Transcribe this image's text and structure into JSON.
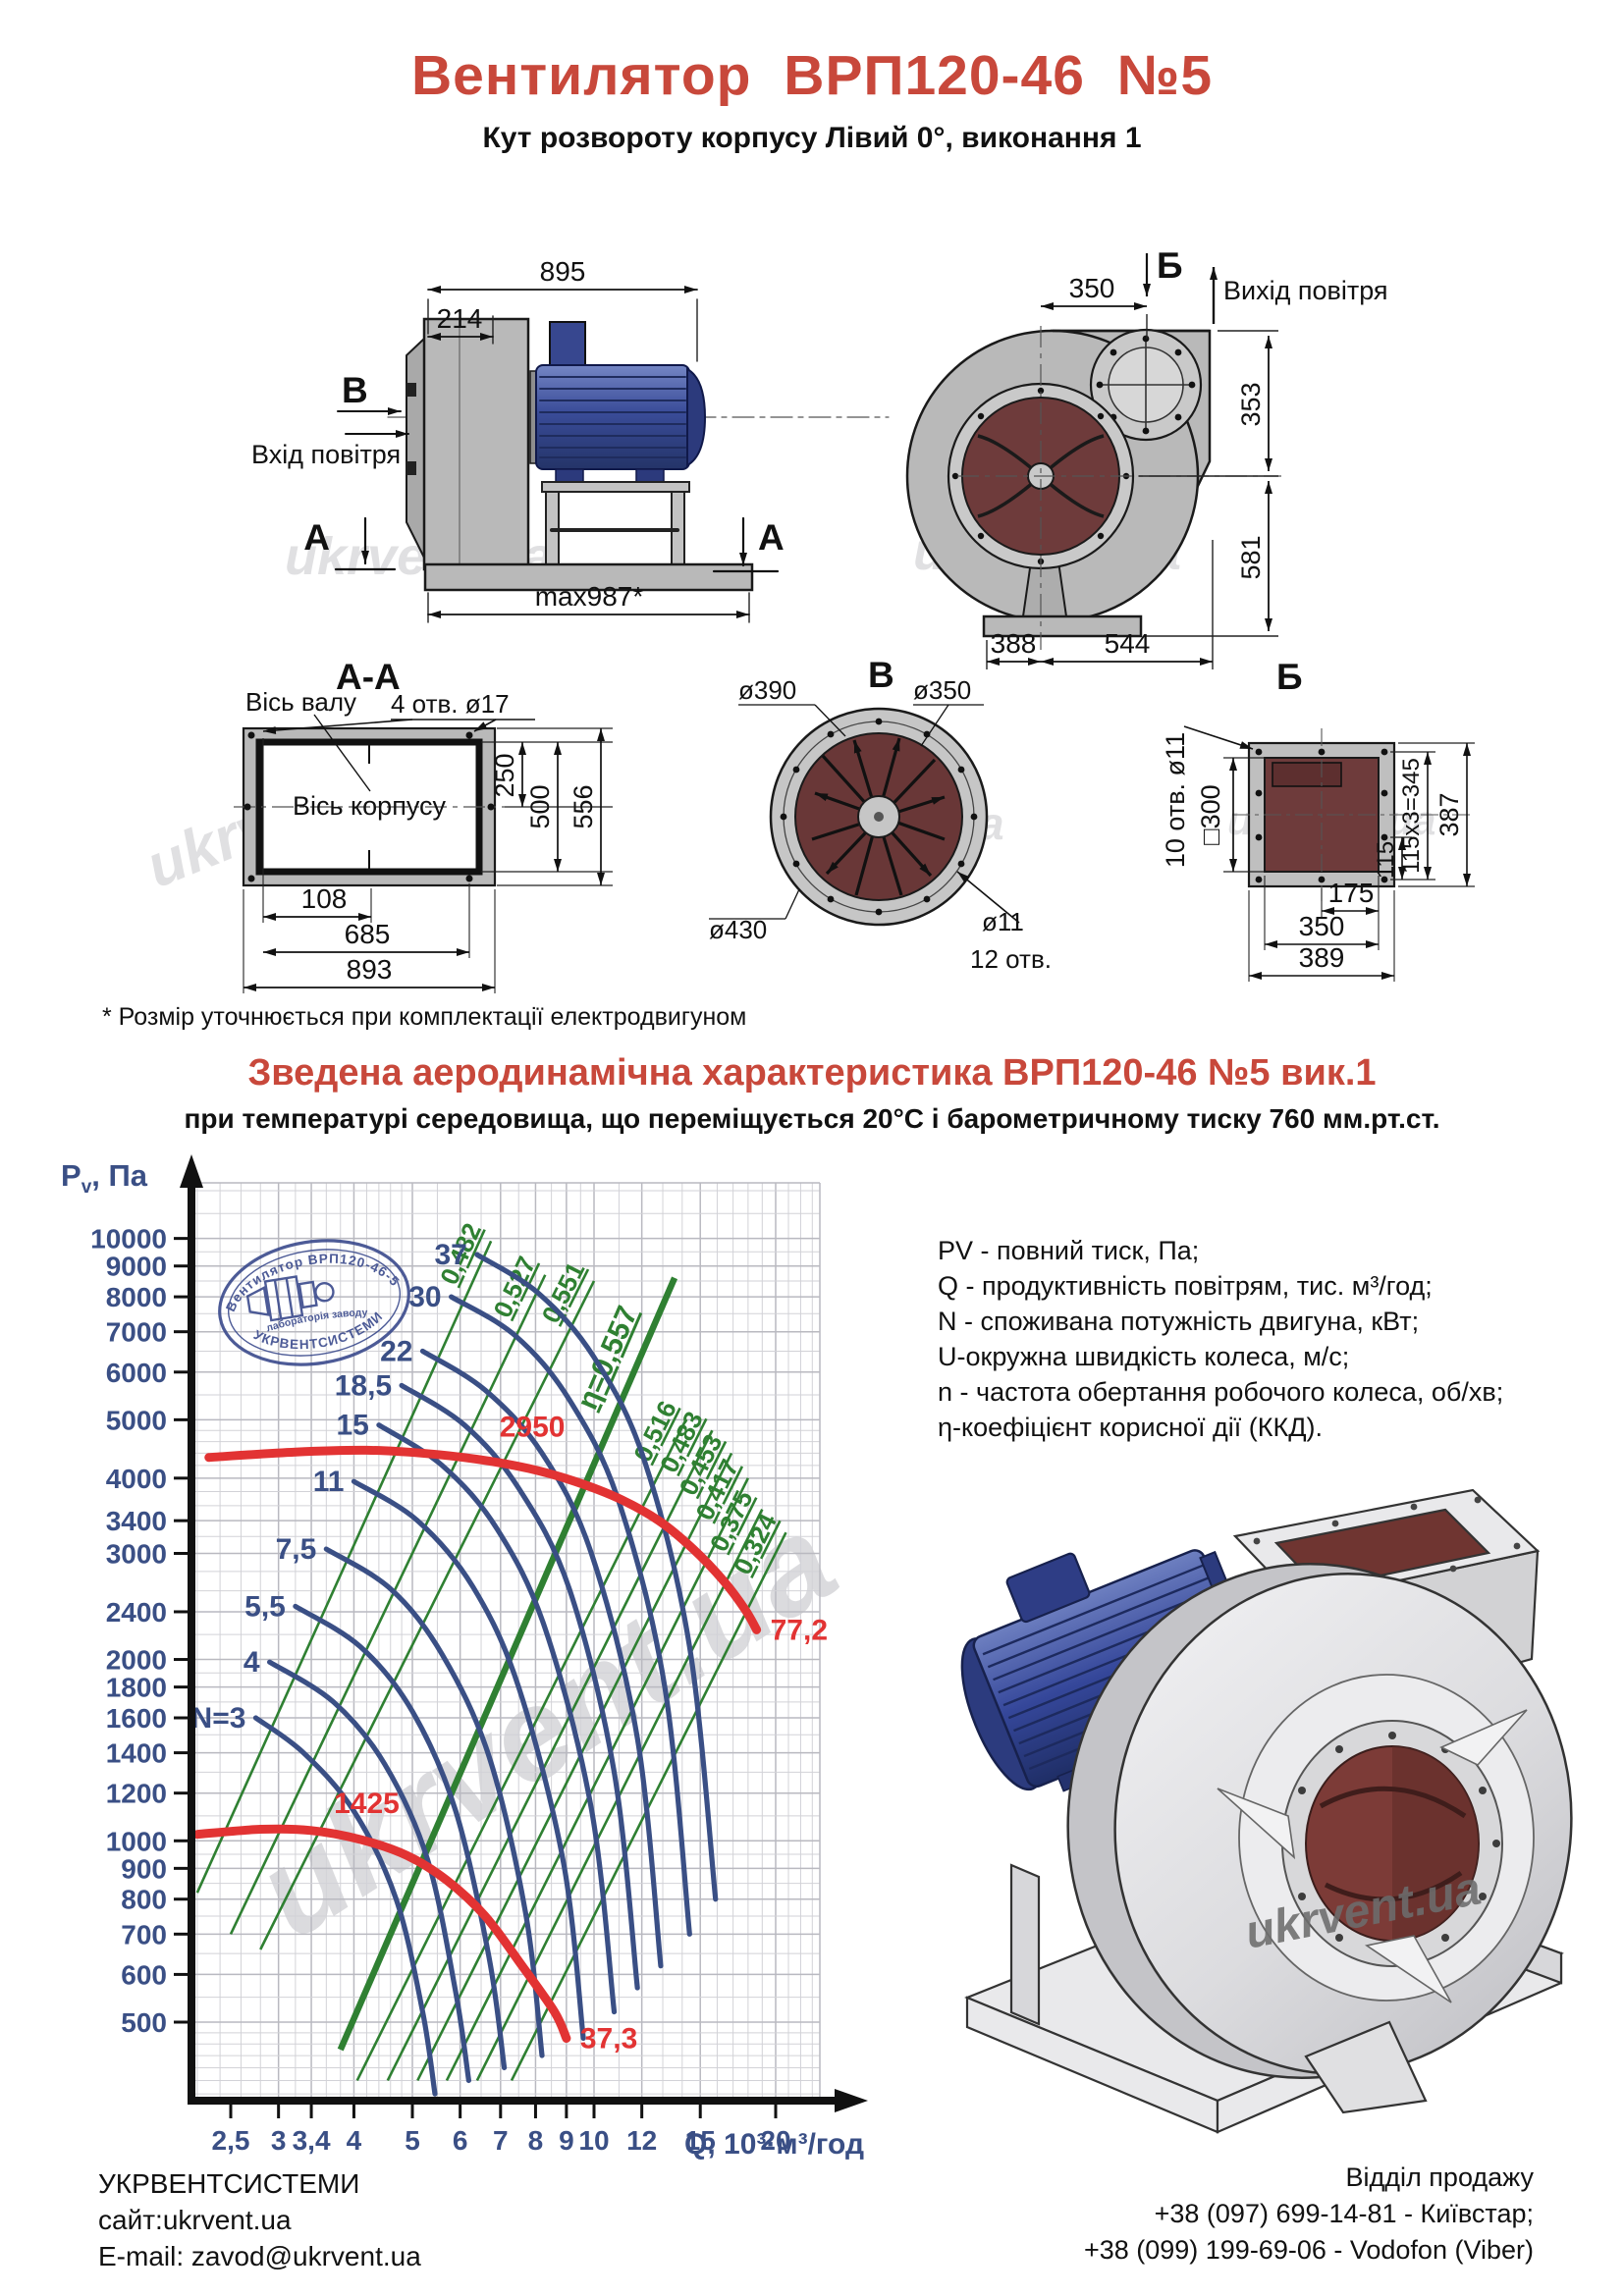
{
  "page": {
    "title": "Вентилятор ВРП120-46 №5",
    "subtitle": "Кут розвороту корпусу Лівий 0°, виконання 1",
    "footnote": "* Розмір уточнюється при комплектації електродвигуном",
    "section_heading": "Зведена аеродинамічна характеристика ВРП120-46 №5 вик.1",
    "section_subheading": "при температурі середовища, що переміщується 20°С і барометричному тиску 760 мм.рт.ст.",
    "watermark": "ukrvent.ua"
  },
  "colors": {
    "accent_red": "#c8483b",
    "curve_blue": "#3a4f85",
    "curve_green": "#2f8032",
    "curve_red": "#e23333",
    "drawing_gray": "#b9b9b9",
    "inlet_maroon": "#6e3b3b",
    "motor_blue": "#3c4f9b"
  },
  "drawings": {
    "side_view": {
      "dim_895": "895",
      "dim_214": "214",
      "label_v": "В",
      "inlet_text": "Вхід повітря",
      "label_a_left": "А",
      "label_a_right": "А",
      "dim_max": "max987*"
    },
    "volute_view": {
      "label_b": "Б",
      "outlet_text": "Вихід повітря",
      "dim_350": "350",
      "dim_353": "353",
      "dim_581": "581",
      "dim_388": "388",
      "dim_544": "544"
    },
    "section_aa": {
      "title": "А-А",
      "axis_shaft": "Вісь валу",
      "holes": "4 отв. ø17",
      "axis_body": "Вісь корпусу",
      "dim_250": "250",
      "dim_500": "500",
      "dim_556": "556",
      "dim_108": "108",
      "dim_685": "685",
      "dim_893": "893"
    },
    "view_v": {
      "title": "В",
      "d390": "ø390",
      "d350": "ø350",
      "d430": "ø430",
      "d11": "ø11",
      "holes": "12 отв."
    },
    "view_b": {
      "title": "Б",
      "holes": "10 отв. ø11",
      "square": "□300",
      "dim_115x3": "115x3=345",
      "dim_387": "387",
      "dim_115": "115",
      "dim_175": "175",
      "dim_350": "350",
      "dim_389": "389"
    }
  },
  "stamp": {
    "top": "Вентилятор ВРП120-46-5",
    "mid": "лабораторія заводу",
    "bottom": "УКРВЕНТСИСТЕМИ"
  },
  "legend": {
    "lines": [
      "PV - повний тиск, Па;",
      "Q - продуктивність повітрям, тис. м³/год;",
      "N - споживана потужність двигуна, кВт;",
      "U-окружна швидкість колеса, м/с;",
      "n - частота обертання робочого колеса, об/хв;",
      "η-коефіцієнт корисної дії (ККД)."
    ]
  },
  "chart_data": {
    "type": "line",
    "title": "Зведена аеродинамічна характеристика ВРП120-46 №5 вик.1",
    "xlabel": "Q, 10³·м³/год",
    "ylabel": "Pv, Па",
    "ylabel_parts": {
      "p": "P",
      "sub": "v",
      "rest": ", Па"
    },
    "x_scale": "log",
    "y_scale": "log",
    "x_range": [
      2.15,
      23.7
    ],
    "y_range": [
      370,
      12400
    ],
    "grid": true,
    "legend_position": "right",
    "x_ticks": [
      {
        "v": 2.5,
        "label": "2,5"
      },
      {
        "v": 3,
        "label": "3"
      },
      {
        "v": 3.4,
        "label": "3,4"
      },
      {
        "v": 4,
        "label": "4"
      },
      {
        "v": 5,
        "label": "5"
      },
      {
        "v": 6,
        "label": "6"
      },
      {
        "v": 7,
        "label": "7"
      },
      {
        "v": 8,
        "label": "8"
      },
      {
        "v": 9,
        "label": "9"
      },
      {
        "v": 10,
        "label": "10"
      },
      {
        "v": 12,
        "label": "12"
      },
      {
        "v": 15,
        "label": "15"
      },
      {
        "v": 20,
        "label": "20"
      }
    ],
    "y_ticks": [
      500,
      600,
      700,
      800,
      900,
      1000,
      1200,
      1400,
      1600,
      1800,
      2000,
      2400,
      3000,
      3400,
      4000,
      5000,
      6000,
      7000,
      8000,
      9000,
      10000
    ],
    "x_minor": [
      2.2,
      2.4,
      2.6,
      2.8,
      3,
      3.2,
      3.4,
      3.6,
      3.8,
      4,
      4.2,
      4.4,
      4.6,
      4.8,
      5,
      5.5,
      6,
      6.5,
      7,
      7.5,
      8,
      8.5,
      9,
      9.5,
      10,
      11,
      12,
      13,
      14,
      15,
      16,
      17,
      18,
      19,
      20,
      21,
      22,
      23
    ],
    "y_minor": [
      380,
      400,
      420,
      440,
      460,
      480,
      500,
      550,
      600,
      650,
      700,
      750,
      800,
      850,
      900,
      950,
      1000,
      1100,
      1200,
      1300,
      1400,
      1500,
      1600,
      1700,
      1800,
      1900,
      2000,
      2200,
      2400,
      2600,
      2800,
      3000,
      3200,
      3400,
      3600,
      3800,
      4000,
      4200,
      4400,
      4600,
      4800,
      5000,
      5500,
      6000,
      6500,
      7000,
      7500,
      8000,
      8500,
      9000,
      9500,
      10000,
      11000,
      12000
    ],
    "power_curves_kW": [
      {
        "label": "37",
        "points": [
          [
            6.4,
            9400
          ],
          [
            8.1,
            8100
          ],
          [
            10.0,
            6350
          ],
          [
            12.1,
            4300
          ],
          [
            14.4,
            2100
          ],
          [
            15.9,
            800
          ]
        ]
      },
      {
        "label": "30",
        "points": [
          [
            5.8,
            8000
          ],
          [
            7.4,
            6900
          ],
          [
            9.1,
            5400
          ],
          [
            11.0,
            3650
          ],
          [
            13.1,
            1800
          ],
          [
            14.4,
            700
          ]
        ]
      },
      {
        "label": "22",
        "points": [
          [
            5.2,
            6500
          ],
          [
            6.6,
            5600
          ],
          [
            8.2,
            4400
          ],
          [
            9.9,
            3000
          ],
          [
            11.8,
            1480
          ],
          [
            12.9,
            620
          ]
        ]
      },
      {
        "label": "18,5",
        "points": [
          [
            4.8,
            5700
          ],
          [
            6.1,
            4900
          ],
          [
            7.5,
            3850
          ],
          [
            9.1,
            2620
          ],
          [
            10.8,
            1300
          ],
          [
            11.8,
            570
          ]
        ]
      },
      {
        "label": "15",
        "points": [
          [
            4.4,
            4900
          ],
          [
            5.6,
            4200
          ],
          [
            6.9,
            3300
          ],
          [
            8.3,
            2250
          ],
          [
            9.9,
            1130
          ],
          [
            10.8,
            520
          ]
        ]
      },
      {
        "label": "11",
        "points": [
          [
            4.0,
            3950
          ],
          [
            5.1,
            3400
          ],
          [
            6.3,
            2640
          ],
          [
            7.5,
            1800
          ],
          [
            8.9,
            920
          ],
          [
            9.6,
            470
          ]
        ]
      },
      {
        "label": "7,5",
        "points": [
          [
            3.6,
            3050
          ],
          [
            4.6,
            2620
          ],
          [
            5.6,
            2040
          ],
          [
            6.7,
            1380
          ],
          [
            7.7,
            760
          ],
          [
            8.2,
            440
          ]
        ]
      },
      {
        "label": "5,5",
        "points": [
          [
            3.2,
            2450
          ],
          [
            4.1,
            2100
          ],
          [
            5.0,
            1640
          ],
          [
            5.9,
            1120
          ],
          [
            6.7,
            640
          ],
          [
            7.1,
            420
          ]
        ]
      },
      {
        "label": "4",
        "points": [
          [
            2.9,
            1980
          ],
          [
            3.7,
            1700
          ],
          [
            4.5,
            1340
          ],
          [
            5.3,
            930
          ],
          [
            5.9,
            560
          ],
          [
            6.2,
            400
          ]
        ]
      },
      {
        "label": "N=3",
        "points": [
          [
            2.75,
            1600
          ],
          [
            3.3,
            1400
          ],
          [
            4.0,
            1120
          ],
          [
            4.7,
            800
          ],
          [
            5.2,
            520
          ],
          [
            5.45,
            380
          ]
        ]
      }
    ],
    "efficiency_lines": [
      {
        "label": "0,482",
        "from": [
          2.2,
          820
        ],
        "to": [
          6.75,
          9900
        ]
      },
      {
        "label": "0,527",
        "from": [
          2.5,
          700
        ],
        "to": [
          8.3,
          8700
        ]
      },
      {
        "label": "0,551",
        "from": [
          2.8,
          660
        ],
        "to": [
          10.0,
          8500
        ]
      },
      {
        "label": "η=0,557",
        "major": true,
        "from": [
          3.8,
          450
        ],
        "to": [
          13.6,
          8600
        ],
        "label_at": [
          11.5,
          6100
        ]
      },
      {
        "label": "0,516",
        "from": [
          4.05,
          400
        ],
        "to": [
          14.2,
          5000
        ]
      },
      {
        "label": "0,483",
        "from": [
          4.55,
          400
        ],
        "to": [
          15.7,
          4800
        ]
      },
      {
        "label": "0,453",
        "from": [
          5.1,
          400
        ],
        "to": [
          16.9,
          4400
        ]
      },
      {
        "label": "0,417",
        "from": [
          5.7,
          400
        ],
        "to": [
          18.0,
          4000
        ]
      },
      {
        "label": "0,375",
        "from": [
          6.4,
          400
        ],
        "to": [
          19.0,
          3550
        ]
      },
      {
        "label": "0,324",
        "from": [
          7.3,
          400
        ],
        "to": [
          20.8,
          3250
        ]
      }
    ],
    "speed_curves_rpm": [
      {
        "label": "2950",
        "label_at": [
          7.9,
          4550
        ],
        "end_label": "77,2",
        "points": [
          [
            2.3,
            4330
          ],
          [
            3.2,
            4420
          ],
          [
            4.2,
            4450
          ],
          [
            5.2,
            4400
          ],
          [
            6.4,
            4300
          ],
          [
            7.8,
            4150
          ],
          [
            9.3,
            3950
          ],
          [
            11,
            3700
          ],
          [
            12.8,
            3400
          ],
          [
            14.6,
            3050
          ],
          [
            16.4,
            2700
          ],
          [
            17.8,
            2420
          ],
          [
            18.6,
            2240
          ]
        ]
      },
      {
        "label": "1425",
        "label_at": [
          4.2,
          1080
        ],
        "end_label": "37,3",
        "points": [
          [
            2.2,
            1025
          ],
          [
            2.8,
            1045
          ],
          [
            3.4,
            1040
          ],
          [
            4.1,
            1005
          ],
          [
            4.9,
            945
          ],
          [
            5.7,
            860
          ],
          [
            6.6,
            750
          ],
          [
            7.6,
            620
          ],
          [
            8.6,
            520
          ],
          [
            9.0,
            470
          ]
        ]
      }
    ]
  },
  "footer": {
    "left": {
      "lines": [
        "УКРВЕНТСИСТЕМИ",
        "сайт:ukrvent.ua",
        "E-mail: zavod@ukrvent.ua"
      ]
    },
    "right": {
      "lines": [
        "Відділ продажу",
        "+38 (097) 699-14-81 - Київстар;",
        "+38 (099) 199-69-06 - Vodofon (Viber)"
      ]
    }
  }
}
